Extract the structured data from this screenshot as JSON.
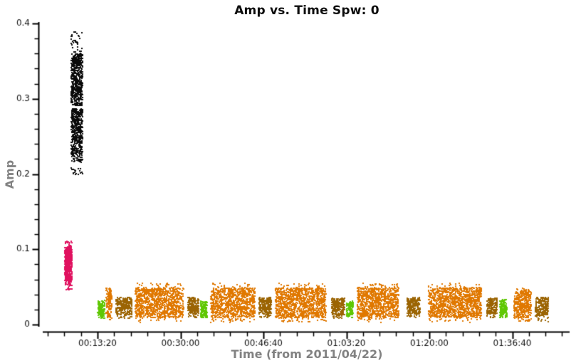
{
  "page": {
    "background": "#ffffff"
  },
  "chart_data": {
    "type": "scatter",
    "title": "Amp vs. Time Spw: 0",
    "xlabel": "Time (from 2011/04/22)",
    "ylabel": "Amp",
    "legend": "none",
    "grid": false,
    "marker_px": 2,
    "seed": 20110422,
    "x_axis": {
      "range_seconds": [
        156,
        6491
      ],
      "major_tick_seconds": [
        800,
        1800,
        2800,
        3800,
        4800,
        5800
      ],
      "major_tick_labels": [
        "00:13:20",
        "00:30:00",
        "00:46:40",
        "01:03:20",
        "01:20:00",
        "01:36:40"
      ],
      "minor_tick_interval_seconds": 200
    },
    "y_axis": {
      "range": [
        0,
        0.4
      ],
      "major_ticks": [
        0,
        0.1,
        0.2,
        0.3,
        0.4
      ],
      "major_tick_labels": [
        "0",
        "0.1",
        "0.2",
        "0.3",
        "0.4"
      ],
      "minor_tick_interval": 0.02
    },
    "colors": {
      "black": "#0a0a0a",
      "magenta": "#e0115f",
      "orange": "#e07800",
      "green": "#5fc704",
      "brown": "#9b6403",
      "axis": "#000000",
      "tick_label": "#111111",
      "background": "#ffffff"
    },
    "clusters": [
      {
        "name": "cluster-high-black",
        "color_key": "black",
        "t": [
          482,
          620
        ],
        "bands": [
          {
            "a": [
              0.199,
              0.208
            ],
            "n": 18
          },
          {
            "a": [
              0.216,
              0.24
            ],
            "n": 110
          },
          {
            "a": [
              0.24,
              0.287
            ],
            "n": 400
          },
          {
            "a": [
              0.291,
              0.36
            ],
            "n": 560
          },
          {
            "a": [
              0.36,
              0.389
            ],
            "n": 35
          }
        ]
      },
      {
        "name": "cluster-magenta",
        "color_key": "magenta",
        "t": [
          405,
          491
        ],
        "bands": [
          {
            "a": [
              0.046,
              0.058
            ],
            "n": 28
          },
          {
            "a": [
              0.058,
              0.103
            ],
            "n": 480
          },
          {
            "a": [
              0.103,
              0.113
            ],
            "n": 16
          }
        ]
      },
      {
        "name": "cluster-green-1",
        "color_key": "green",
        "t": [
          804,
          886
        ],
        "bands": [
          {
            "a": [
              0.008,
              0.032
            ],
            "n": 90
          },
          {
            "a": [
              0.013,
              0.028
            ],
            "n": 60
          }
        ]
      },
      {
        "name": "cluster-orange-narrow",
        "color_key": "orange",
        "t": [
          903,
          972
        ],
        "bands": [
          {
            "a": [
              0.007,
              0.049
            ],
            "n": 80
          },
          {
            "a": [
              0.013,
              0.044
            ],
            "n": 55
          }
        ]
      },
      {
        "name": "cluster-brown-1",
        "color_key": "brown",
        "t": [
          1023,
          1216
        ],
        "bands": [
          {
            "a": [
              0.013,
              0.036
            ],
            "n": 290
          },
          {
            "a": [
              0.008,
              0.013
            ],
            "n": 18
          }
        ]
      },
      {
        "name": "cluster-orange-a",
        "color_key": "orange",
        "t": [
          1255,
          1839
        ],
        "bands": [
          {
            "a": [
              0.003,
              0.055
            ],
            "n": 200
          },
          {
            "a": [
              0.009,
              0.049
            ],
            "n": 880
          }
        ]
      },
      {
        "name": "cluster-brown-2",
        "color_key": "brown",
        "t": [
          1890,
          2019
        ],
        "bands": [
          {
            "a": [
              0.014,
              0.036
            ],
            "n": 200
          },
          {
            "a": [
              0.009,
              0.014
            ],
            "n": 15
          }
        ]
      },
      {
        "name": "cluster-green-2",
        "color_key": "green",
        "t": [
          2041,
          2122
        ],
        "bands": [
          {
            "a": [
              0.008,
              0.031
            ],
            "n": 85
          },
          {
            "a": [
              0.013,
              0.027
            ],
            "n": 55
          }
        ]
      },
      {
        "name": "cluster-orange-b",
        "color_key": "orange",
        "t": [
          2165,
          2697
        ],
        "bands": [
          {
            "a": [
              0.003,
              0.055
            ],
            "n": 185
          },
          {
            "a": [
              0.009,
              0.049
            ],
            "n": 800
          }
        ]
      },
      {
        "name": "cluster-brown-3",
        "color_key": "brown",
        "t": [
          2748,
          2894
        ],
        "bands": [
          {
            "a": [
              0.014,
              0.036
            ],
            "n": 225
          },
          {
            "a": [
              0.009,
              0.014
            ],
            "n": 15
          }
        ]
      },
      {
        "name": "cluster-orange-c",
        "color_key": "orange",
        "t": [
          2946,
          3555
        ],
        "bands": [
          {
            "a": [
              0.003,
              0.055
            ],
            "n": 215
          },
          {
            "a": [
              0.009,
              0.049
            ],
            "n": 920
          }
        ]
      },
      {
        "name": "cluster-brown-4",
        "color_key": "brown",
        "t": [
          3624,
          3778
        ],
        "bands": [
          {
            "a": [
              0.013,
              0.035
            ],
            "n": 235
          },
          {
            "a": [
              0.008,
              0.013
            ],
            "n": 15
          }
        ]
      },
      {
        "name": "cluster-green-3",
        "color_key": "green",
        "t": [
          3800,
          3881
        ],
        "bands": [
          {
            "a": [
              0.009,
              0.031
            ],
            "n": 85
          },
          {
            "a": [
              0.013,
              0.027
            ],
            "n": 55
          }
        ]
      },
      {
        "name": "cluster-orange-d",
        "color_key": "orange",
        "t": [
          3933,
          4431
        ],
        "bands": [
          {
            "a": [
              0.003,
              0.055
            ],
            "n": 175
          },
          {
            "a": [
              0.009,
              0.049
            ],
            "n": 760
          }
        ]
      },
      {
        "name": "cluster-brown-5",
        "color_key": "brown",
        "t": [
          4533,
          4688
        ],
        "bands": [
          {
            "a": [
              0.014,
              0.036
            ],
            "n": 235
          },
          {
            "a": [
              0.009,
              0.014
            ],
            "n": 15
          }
        ]
      },
      {
        "name": "cluster-orange-e",
        "color_key": "orange",
        "t": [
          4791,
          5426
        ],
        "bands": [
          {
            "a": [
              0.003,
              0.055
            ],
            "n": 225
          },
          {
            "a": [
              0.009,
              0.049
            ],
            "n": 960
          }
        ]
      },
      {
        "name": "cluster-brown-6",
        "color_key": "brown",
        "t": [
          5494,
          5619
        ],
        "bands": [
          {
            "a": [
              0.014,
              0.035
            ],
            "n": 190
          },
          {
            "a": [
              0.009,
              0.014
            ],
            "n": 12
          }
        ]
      },
      {
        "name": "cluster-green-4",
        "color_key": "green",
        "t": [
          5649,
          5735
        ],
        "bands": [
          {
            "a": [
              0.009,
              0.033
            ],
            "n": 90
          },
          {
            "a": [
              0.014,
              0.028
            ],
            "n": 55
          }
        ]
      },
      {
        "name": "cluster-orange-f",
        "color_key": "orange",
        "t": [
          5821,
          6027
        ],
        "bands": [
          {
            "a": [
              0.004,
              0.048
            ],
            "n": 140
          },
          {
            "a": [
              0.009,
              0.044
            ],
            "n": 260
          }
        ]
      },
      {
        "name": "cluster-brown-7",
        "color_key": "brown",
        "t": [
          6078,
          6237
        ],
        "bands": [
          {
            "a": [
              0.012,
              0.036
            ],
            "n": 240
          },
          {
            "a": [
              0.004,
              0.012
            ],
            "n": 18
          }
        ]
      }
    ]
  }
}
